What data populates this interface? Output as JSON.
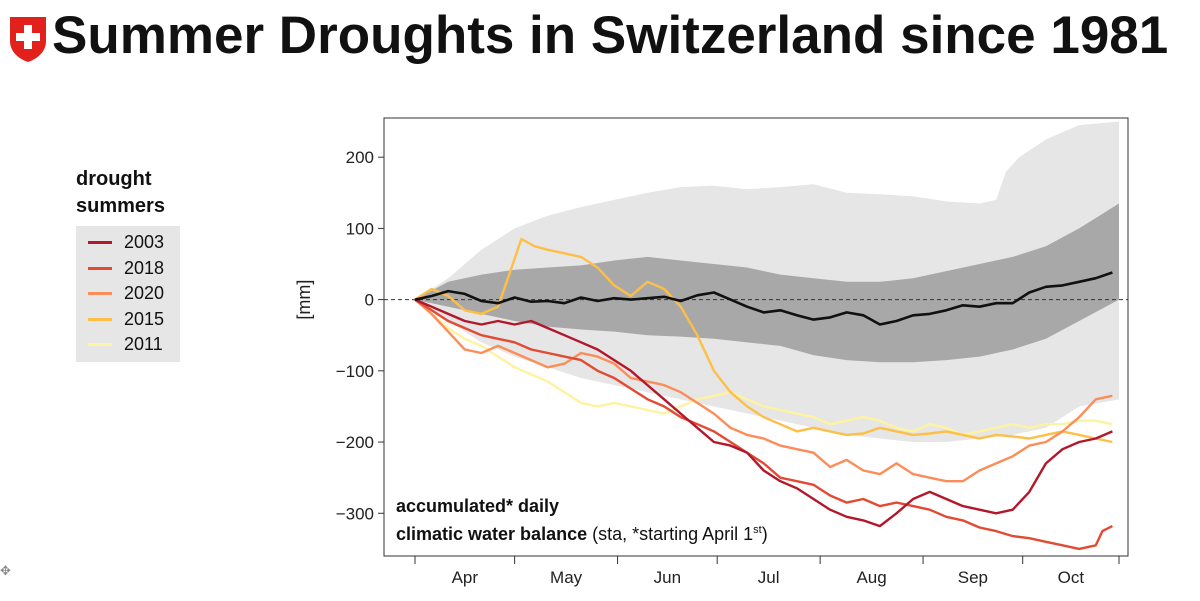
{
  "title": "Summer Droughts in Switzerland since 1981",
  "icons": {
    "logo": "swiss-shield-icon",
    "cursor": "move-cursor-icon"
  },
  "legend": {
    "title_line1": "drought",
    "title_line2": "summers",
    "items": [
      {
        "label": "2003",
        "color": "#b2182b"
      },
      {
        "label": "2018",
        "color": "#e34a33"
      },
      {
        "label": "2020",
        "color": "#fc8d59"
      },
      {
        "label": "2015",
        "color": "#fdbf47"
      },
      {
        "label": "2011",
        "color": "#fdf3a1"
      }
    ]
  },
  "annotation": {
    "line1": "accumulated* daily",
    "line2_bold": "climatic water balance",
    "line2_rest": " (sta, *starting April 1",
    "sup": "st",
    "close": ")"
  },
  "chart_data": {
    "type": "line",
    "ylabel": "[mm]",
    "ylim": [
      -360,
      255
    ],
    "xlim": [
      0,
      212
    ],
    "yticks": [
      200,
      100,
      0,
      -100,
      -200,
      -300
    ],
    "ytick_labels": [
      "200",
      "100",
      "0",
      "−100",
      "−200",
      "−300"
    ],
    "months": [
      "Apr",
      "May",
      "Jun",
      "Jul",
      "Aug",
      "Sep",
      "Oct"
    ],
    "month_boundaries": [
      0,
      30,
      61,
      91,
      122,
      153,
      183,
      212
    ],
    "zero_line": "dashed",
    "bands": [
      {
        "name": "outer",
        "color": "#e6e6e6",
        "upper": [
          [
            0,
            0
          ],
          [
            10,
            30
          ],
          [
            20,
            70
          ],
          [
            30,
            100
          ],
          [
            40,
            118
          ],
          [
            50,
            130
          ],
          [
            60,
            140
          ],
          [
            70,
            150
          ],
          [
            80,
            158
          ],
          [
            90,
            160
          ],
          [
            100,
            155
          ],
          [
            110,
            158
          ],
          [
            120,
            162
          ],
          [
            130,
            150
          ],
          [
            140,
            148
          ],
          [
            150,
            145
          ],
          [
            160,
            138
          ],
          [
            170,
            135
          ],
          [
            175,
            140
          ],
          [
            178,
            180
          ],
          [
            182,
            200
          ],
          [
            190,
            225
          ],
          [
            200,
            245
          ],
          [
            212,
            250
          ]
        ],
        "lower": [
          [
            0,
            0
          ],
          [
            10,
            -30
          ],
          [
            20,
            -60
          ],
          [
            30,
            -80
          ],
          [
            40,
            -95
          ],
          [
            50,
            -110
          ],
          [
            60,
            -120
          ],
          [
            70,
            -130
          ],
          [
            80,
            -140
          ],
          [
            90,
            -150
          ],
          [
            100,
            -160
          ],
          [
            110,
            -170
          ],
          [
            120,
            -180
          ],
          [
            130,
            -190
          ],
          [
            140,
            -195
          ],
          [
            150,
            -200
          ],
          [
            160,
            -200
          ],
          [
            170,
            -195
          ],
          [
            180,
            -190
          ],
          [
            190,
            -180
          ],
          [
            200,
            -150
          ],
          [
            212,
            -140
          ]
        ]
      },
      {
        "name": "inner",
        "color": "#a8a8a8",
        "upper": [
          [
            0,
            0
          ],
          [
            10,
            25
          ],
          [
            20,
            35
          ],
          [
            30,
            42
          ],
          [
            40,
            45
          ],
          [
            50,
            48
          ],
          [
            60,
            55
          ],
          [
            70,
            60
          ],
          [
            80,
            55
          ],
          [
            90,
            50
          ],
          [
            100,
            45
          ],
          [
            110,
            35
          ],
          [
            120,
            30
          ],
          [
            130,
            25
          ],
          [
            140,
            25
          ],
          [
            150,
            30
          ],
          [
            160,
            40
          ],
          [
            170,
            50
          ],
          [
            180,
            60
          ],
          [
            190,
            75
          ],
          [
            200,
            100
          ],
          [
            212,
            135
          ]
        ],
        "lower": [
          [
            0,
            0
          ],
          [
            10,
            -10
          ],
          [
            20,
            -20
          ],
          [
            30,
            -30
          ],
          [
            40,
            -38
          ],
          [
            50,
            -42
          ],
          [
            60,
            -45
          ],
          [
            70,
            -50
          ],
          [
            80,
            -52
          ],
          [
            90,
            -55
          ],
          [
            100,
            -60
          ],
          [
            110,
            -65
          ],
          [
            120,
            -78
          ],
          [
            130,
            -85
          ],
          [
            140,
            -88
          ],
          [
            150,
            -88
          ],
          [
            160,
            -85
          ],
          [
            170,
            -80
          ],
          [
            180,
            -70
          ],
          [
            190,
            -55
          ],
          [
            200,
            -30
          ],
          [
            212,
            0
          ]
        ]
      }
    ],
    "series": [
      {
        "name": "median",
        "color": "#111111",
        "width": 2.6,
        "x": [
          0,
          5,
          10,
          15,
          20,
          25,
          30,
          35,
          40,
          45,
          50,
          55,
          60,
          65,
          70,
          75,
          80,
          85,
          90,
          95,
          100,
          105,
          110,
          115,
          120,
          125,
          130,
          135,
          140,
          145,
          150,
          155,
          160,
          165,
          170,
          175,
          180,
          185,
          190,
          195,
          200,
          205,
          210
        ],
        "y": [
          0,
          5,
          12,
          8,
          -2,
          -5,
          3,
          -3,
          -2,
          -5,
          3,
          -2,
          2,
          0,
          2,
          4,
          -2,
          6,
          10,
          0,
          -10,
          -18,
          -15,
          -22,
          -28,
          -25,
          -18,
          -22,
          -35,
          -30,
          -22,
          -20,
          -15,
          -8,
          -10,
          -5,
          -5,
          10,
          18,
          20,
          25,
          30,
          38
        ]
      },
      {
        "name": "2003",
        "color": "#b2182b",
        "width": 2.4,
        "x": [
          0,
          5,
          10,
          15,
          20,
          25,
          30,
          35,
          40,
          45,
          50,
          55,
          60,
          65,
          70,
          75,
          80,
          85,
          90,
          95,
          100,
          105,
          110,
          115,
          120,
          125,
          130,
          135,
          140,
          145,
          150,
          155,
          160,
          165,
          170,
          175,
          180,
          185,
          190,
          195,
          200,
          205,
          210
        ],
        "y": [
          0,
          -10,
          -20,
          -30,
          -35,
          -30,
          -35,
          -30,
          -40,
          -50,
          -60,
          -70,
          -85,
          -100,
          -120,
          -140,
          -160,
          -180,
          -200,
          -205,
          -215,
          -240,
          -255,
          -265,
          -280,
          -295,
          -305,
          -310,
          -318,
          -300,
          -280,
          -270,
          -280,
          -290,
          -295,
          -300,
          -295,
          -270,
          -230,
          -210,
          -200,
          -195,
          -185
        ]
      },
      {
        "name": "2018",
        "color": "#e34a33",
        "width": 2.4,
        "x": [
          0,
          5,
          10,
          15,
          20,
          25,
          30,
          35,
          40,
          45,
          50,
          55,
          60,
          65,
          70,
          75,
          80,
          85,
          90,
          95,
          100,
          105,
          110,
          115,
          120,
          125,
          130,
          135,
          140,
          145,
          150,
          155,
          160,
          165,
          170,
          175,
          180,
          185,
          190,
          195,
          200,
          205,
          207,
          210
        ],
        "y": [
          0,
          -15,
          -30,
          -40,
          -50,
          -55,
          -60,
          -70,
          -75,
          -80,
          -85,
          -100,
          -110,
          -125,
          -140,
          -150,
          -165,
          -175,
          -185,
          -200,
          -215,
          -230,
          -250,
          -255,
          -260,
          -275,
          -285,
          -280,
          -290,
          -285,
          -290,
          -295,
          -305,
          -310,
          -320,
          -325,
          -332,
          -335,
          -340,
          -345,
          -350,
          -345,
          -325,
          -318
        ]
      },
      {
        "name": "2020",
        "color": "#fc8d59",
        "width": 2.4,
        "x": [
          0,
          5,
          10,
          15,
          20,
          25,
          30,
          35,
          40,
          45,
          50,
          55,
          60,
          65,
          70,
          75,
          80,
          85,
          90,
          95,
          100,
          105,
          110,
          115,
          120,
          125,
          130,
          135,
          140,
          145,
          150,
          155,
          160,
          165,
          170,
          175,
          180,
          185,
          190,
          195,
          200,
          205,
          210
        ],
        "y": [
          0,
          -20,
          -45,
          -70,
          -75,
          -65,
          -75,
          -85,
          -95,
          -90,
          -75,
          -80,
          -90,
          -110,
          -115,
          -120,
          -130,
          -145,
          -160,
          -180,
          -190,
          -195,
          -205,
          -210,
          -215,
          -235,
          -225,
          -240,
          -245,
          -230,
          -245,
          -250,
          -255,
          -255,
          -240,
          -230,
          -220,
          -205,
          -200,
          -185,
          -165,
          -140,
          -135
        ]
      },
      {
        "name": "2015",
        "color": "#fdbf47",
        "width": 2.4,
        "x": [
          0,
          5,
          10,
          15,
          20,
          25,
          28,
          32,
          36,
          40,
          45,
          50,
          55,
          60,
          65,
          70,
          75,
          80,
          85,
          90,
          95,
          100,
          105,
          110,
          115,
          120,
          125,
          130,
          135,
          140,
          145,
          150,
          155,
          160,
          165,
          170,
          175,
          180,
          185,
          190,
          195,
          200,
          205,
          210
        ],
        "y": [
          0,
          15,
          5,
          -15,
          -20,
          -10,
          30,
          85,
          75,
          70,
          65,
          60,
          45,
          20,
          5,
          25,
          15,
          -10,
          -50,
          -100,
          -130,
          -150,
          -165,
          -175,
          -185,
          -180,
          -185,
          -190,
          -188,
          -180,
          -185,
          -190,
          -188,
          -185,
          -190,
          -195,
          -190,
          -192,
          -195,
          -190,
          -185,
          -190,
          -195,
          -200
        ]
      },
      {
        "name": "2011",
        "color": "#fdf3a1",
        "width": 2.4,
        "x": [
          0,
          5,
          10,
          15,
          20,
          25,
          30,
          35,
          40,
          45,
          50,
          55,
          60,
          65,
          70,
          75,
          80,
          85,
          90,
          95,
          100,
          105,
          110,
          115,
          120,
          125,
          130,
          135,
          140,
          145,
          150,
          155,
          160,
          165,
          170,
          175,
          180,
          185,
          190,
          195,
          200,
          205,
          210
        ],
        "y": [
          0,
          -20,
          -40,
          -55,
          -65,
          -80,
          -95,
          -105,
          -115,
          -130,
          -145,
          -150,
          -145,
          -150,
          -155,
          -160,
          -150,
          -140,
          -135,
          -130,
          -140,
          -150,
          -155,
          -160,
          -165,
          -175,
          -170,
          -165,
          -170,
          -180,
          -185,
          -175,
          -180,
          -190,
          -185,
          -180,
          -175,
          -180,
          -175,
          -175,
          -170,
          -170,
          -175
        ]
      }
    ]
  }
}
